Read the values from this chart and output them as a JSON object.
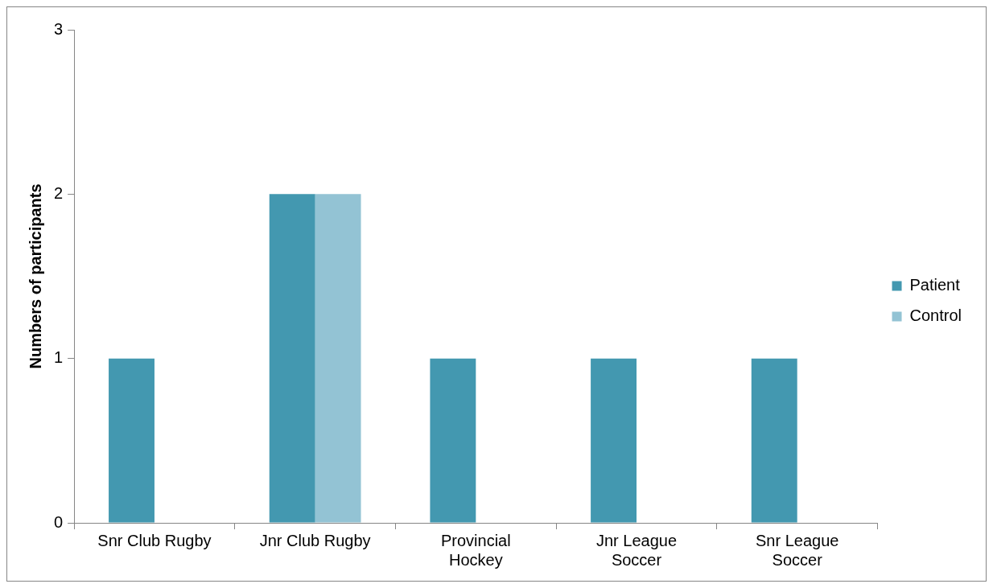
{
  "chart_data": {
    "type": "bar",
    "ylabel": "Numbers of participants",
    "categories": [
      "Snr Club Rugby",
      "Jnr Club Rugby",
      "Provincial Hockey",
      "Jnr League Soccer",
      "Snr League Soccer"
    ],
    "series": [
      {
        "name": "Patient",
        "color": "#4398b0",
        "values": [
          1,
          2,
          1,
          1,
          1
        ]
      },
      {
        "name": "Control",
        "color": "#93c3d4",
        "values": [
          0,
          2,
          0,
          0,
          0
        ]
      }
    ],
    "ylim": [
      0,
      3
    ],
    "yticks": [
      0,
      1,
      2,
      3
    ],
    "grid": false,
    "legend": "right"
  }
}
